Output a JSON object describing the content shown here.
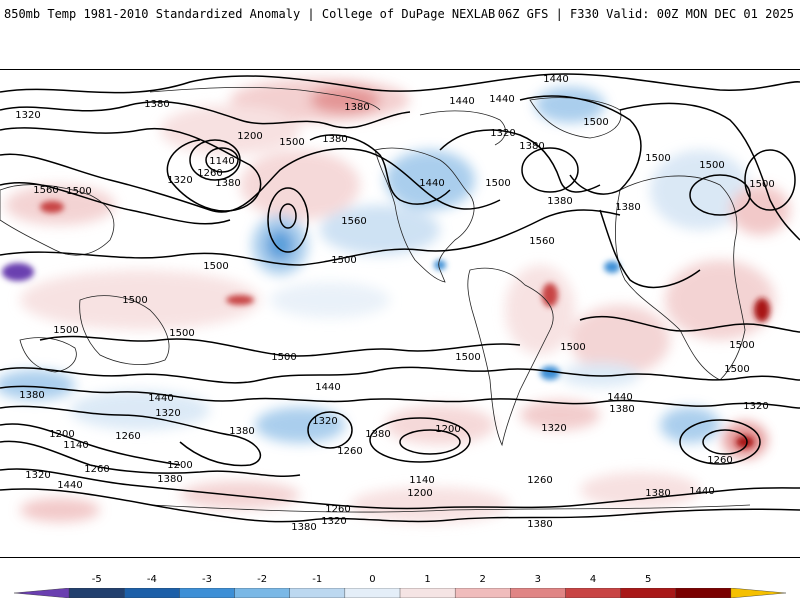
{
  "header": {
    "title_left": "850mb Temp 1981-2010 Standardized Anomaly | College of DuPage NEXLAB",
    "title_right": "06Z GFS | F330 Valid: 00Z MON DEC 01 2025"
  },
  "map": {
    "contour_levels": [
      "1140",
      "1200",
      "1260",
      "1320",
      "1380",
      "1440",
      "1500",
      "1560"
    ],
    "labels": {
      "l1440_top": "1440",
      "l1380_a": "1380",
      "l1380_b": "1380",
      "l1320_a": "1320",
      "l1200": "1200",
      "l1140": "1140",
      "l1260": "1260",
      "l1380_c": "1380",
      "l1320_b": "1320",
      "l1560_a": "1560",
      "l1500_a": "1500",
      "l1440_b": "1440",
      "l1380_d": "1380",
      "l1500_b": "1500",
      "l1560_b": "1560",
      "l1500_c": "1500",
      "l1440_c": "1440",
      "l1380_e": "1380",
      "l1320_c": "1320",
      "l1440_d": "1440",
      "l1500_d": "1500",
      "l1380_f": "1380",
      "l1560_c": "1560",
      "l1500_e": "1500",
      "l1500_f": "1500",
      "l1380_g": "1380",
      "l1500_g": "1500",
      "l1500_h": "1500",
      "l1500_i": "1500",
      "l1500_j": "1500",
      "l1500_k": "1500",
      "l1500_l": "1500",
      "l1500_m": "1500",
      "l1500_n": "1500",
      "l1440_e": "1440",
      "l1380_h": "1380",
      "l1380_i": "1380",
      "l1320_d": "1320",
      "l1200_b": "1200",
      "l1140_b": "1140",
      "l1260_b": "1260",
      "l1380_j": "1380",
      "l1320_e": "1320",
      "l1260_c": "1260",
      "l1200_c": "1200",
      "l1320_f": "1320",
      "l1440_f": "1440",
      "l1260_d": "1260",
      "l1380_k": "1380",
      "l1200_d": "1200",
      "l1260_e": "1260",
      "l1320_g": "1320",
      "l1380_l": "1380",
      "l1440_g": "1440",
      "l1380_m": "1380",
      "l1320_h": "1320",
      "l1200_e": "1200",
      "l1380_n": "1380",
      "l1260_f": "1260",
      "l1320_i": "1320",
      "l1140_c": "1140",
      "l1200_f": "1200",
      "l1260_g": "1260",
      "l1320_j": "1320",
      "l1380_o": "1380",
      "l1440_h": "1440",
      "l1440_i": "1440",
      "l1380_p": "1380",
      "l1320_k": "1320",
      "l1260_h": "1260",
      "l1380_q": "1380",
      "l1440_j": "1440",
      "l1500_o": "1500",
      "l1500_p": "1500",
      "l1500_q": "1500",
      "l1380_r": "1380",
      "l1320_l": "1320",
      "l1260_i": "1260",
      "l1200_g": "1200",
      "l1260_j": "1260",
      "l1380_s": "1380"
    }
  },
  "colorbar": {
    "labels": [
      "-5",
      "-4",
      "-3",
      "-2",
      "-1",
      "0",
      "1",
      "2",
      "3",
      "4",
      "5"
    ],
    "colors": [
      "#6a3fb0",
      "#22406e",
      "#1c5fa8",
      "#3d8fd6",
      "#7ab8e6",
      "#bcd8f0",
      "#e4eef8",
      "#f5e4e4",
      "#f0bcbc",
      "#e08585",
      "#c84444",
      "#a81818",
      "#7a0000",
      "#f5c000"
    ]
  }
}
